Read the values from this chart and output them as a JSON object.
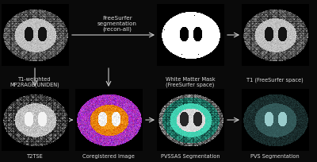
{
  "background_color": "#0a0a0a",
  "text_color": "#dddddd",
  "arrow_color": "#cccccc",
  "figure_width": 4.0,
  "figure_height": 2.04,
  "dpi": 100,
  "label_fontsize": 4.8,
  "freesurfer_label": "FreeSurfer\nsegmentation\n(recon-all)",
  "freesurfer_fontsize": 5.2,
  "top_labels": [
    "T1-weighted\nMP2RAGE(UNIDEN)",
    "White Matter Mask\n(FreeSurfer space)",
    "T1 (FreeSurfer space)"
  ],
  "bottom_labels": [
    "T2TSE",
    "Coregistered Image",
    "PVSSAS Segmentation",
    "PVS Segmentation"
  ]
}
